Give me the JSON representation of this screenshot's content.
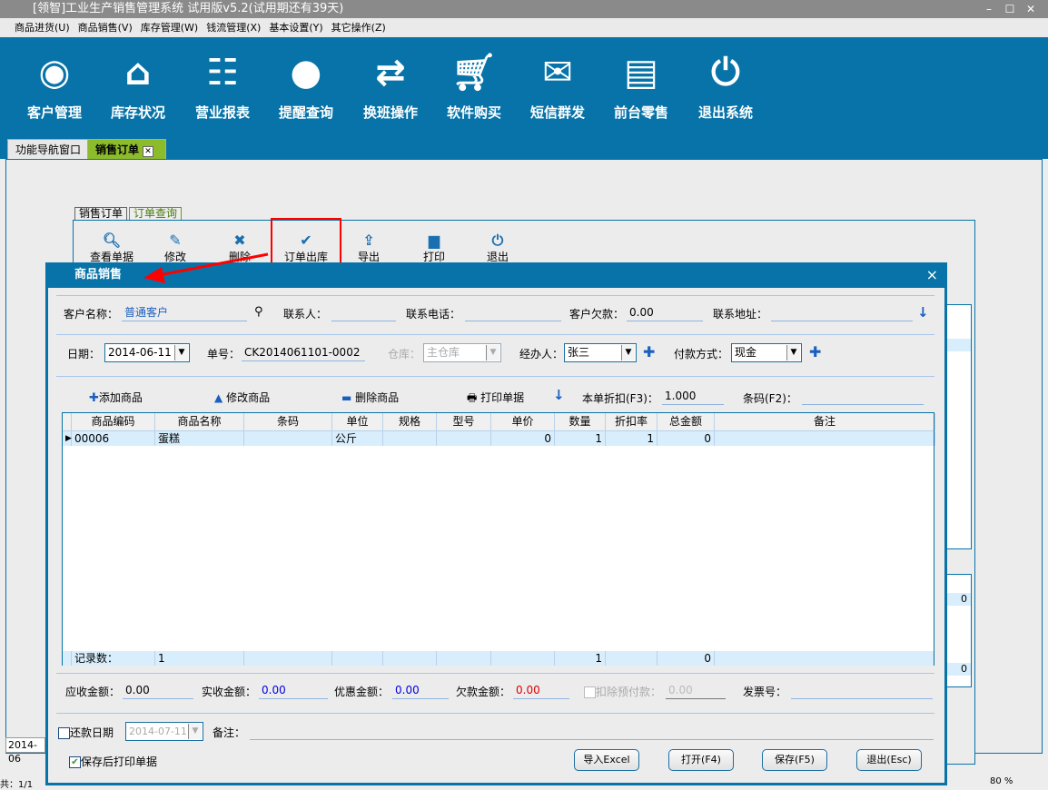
{
  "window": {
    "title": "[领智]工业生产销售管理系统 试用版v5.2(试用期还有39天)",
    "min": "–",
    "max": "☐",
    "close": "✕"
  },
  "menu": [
    "商品进货(U)",
    "商品销售(V)",
    "库存管理(W)",
    "钱流管理(X)",
    "基本设置(Y)",
    "其它操作(Z)"
  ],
  "toolbar": [
    {
      "label": "客户管理",
      "icon": "user-icon"
    },
    {
      "label": "库存状况",
      "icon": "home-icon"
    },
    {
      "label": "营业报表",
      "icon": "report-icon"
    },
    {
      "label": "提醒查询",
      "icon": "chat-user-icon"
    },
    {
      "label": "换班操作",
      "icon": "swap-icon"
    },
    {
      "label": "软件购买",
      "icon": "cart-icon"
    },
    {
      "label": "短信群发",
      "icon": "mail-icon"
    },
    {
      "label": "前台零售",
      "icon": "register-icon"
    },
    {
      "label": "退出系统",
      "icon": "power-icon"
    }
  ],
  "tabs": [
    {
      "label": "功能导航窗口"
    },
    {
      "label": "销售订单",
      "close": "✕"
    }
  ],
  "subtabs": [
    "销售订单",
    "订单查询"
  ],
  "order_toolbar": [
    "查看单据",
    "修改",
    "删除",
    "订单出库",
    "导出",
    "打印",
    "退出"
  ],
  "dialog": {
    "title": "商品销售",
    "close": "×",
    "customer_label": "客户名称：",
    "customer": "普通客户",
    "contact_label": "联系人：",
    "contact": "",
    "phone_label": "联系电话：",
    "phone": "",
    "debt_label": "客户欠款：",
    "debt": "0.00",
    "address_label": "联系地址：",
    "address": "",
    "date_label": "日期：",
    "date": "2014-06-11",
    "no_label": "单号：",
    "no": "CK2014061101-0002",
    "warehouse_label": "仓库：",
    "warehouse": "主仓库",
    "handler_label": "经办人：",
    "handler": "张三",
    "pay_label": "付款方式：",
    "pay": "现金",
    "add": "添加商品",
    "edit": "修改商品",
    "del": "删除商品",
    "print": "打印单据",
    "discount_label": "本单折扣(F3)：",
    "discount": "1.000",
    "barcode_label": "条码(F2)：",
    "barcode": "",
    "columns": [
      "商品编码",
      "商品名称",
      "条码",
      "单位",
      "规格",
      "型号",
      "单价",
      "数量",
      "折扣率",
      "总金额",
      "备注"
    ],
    "rows": [
      [
        "00006",
        "蛋糕",
        "",
        "公斤",
        "",
        "",
        "0",
        "1",
        "1",
        "0",
        ""
      ]
    ],
    "footer": {
      "label": "记录数：",
      "count": "1",
      "qty": "1",
      "total": "0"
    },
    "receivable_label": "应收金额：",
    "receivable": "0.00",
    "received_label": "实收金额：",
    "received": "0.00",
    "discount_amt_label": "优惠金额：",
    "discount_amt": "0.00",
    "owed_label": "欠款金额：",
    "owed": "0.00",
    "prepay_label": "扣除预付款：",
    "prepay": "0.00",
    "invoice_label": "发票号：",
    "invoice": "",
    "repay_label": "还款日期",
    "repay_date": "2014-07-11",
    "note_label": "备注：",
    "note": "",
    "print_after": "保存后打印单据",
    "buttons": [
      "导入Excel",
      "打开(F4)",
      "保存(F5)",
      "退出(Esc)"
    ]
  },
  "background": {
    "date_fragment": "2014-06",
    "right_cell_1": "0",
    "right_cell_2": "0",
    "status_left": "共：1/1",
    "zoom": "80 %"
  },
  "colors": {
    "brand": "#0773a8",
    "owed": "#e00000",
    "received": "#0000e0"
  }
}
